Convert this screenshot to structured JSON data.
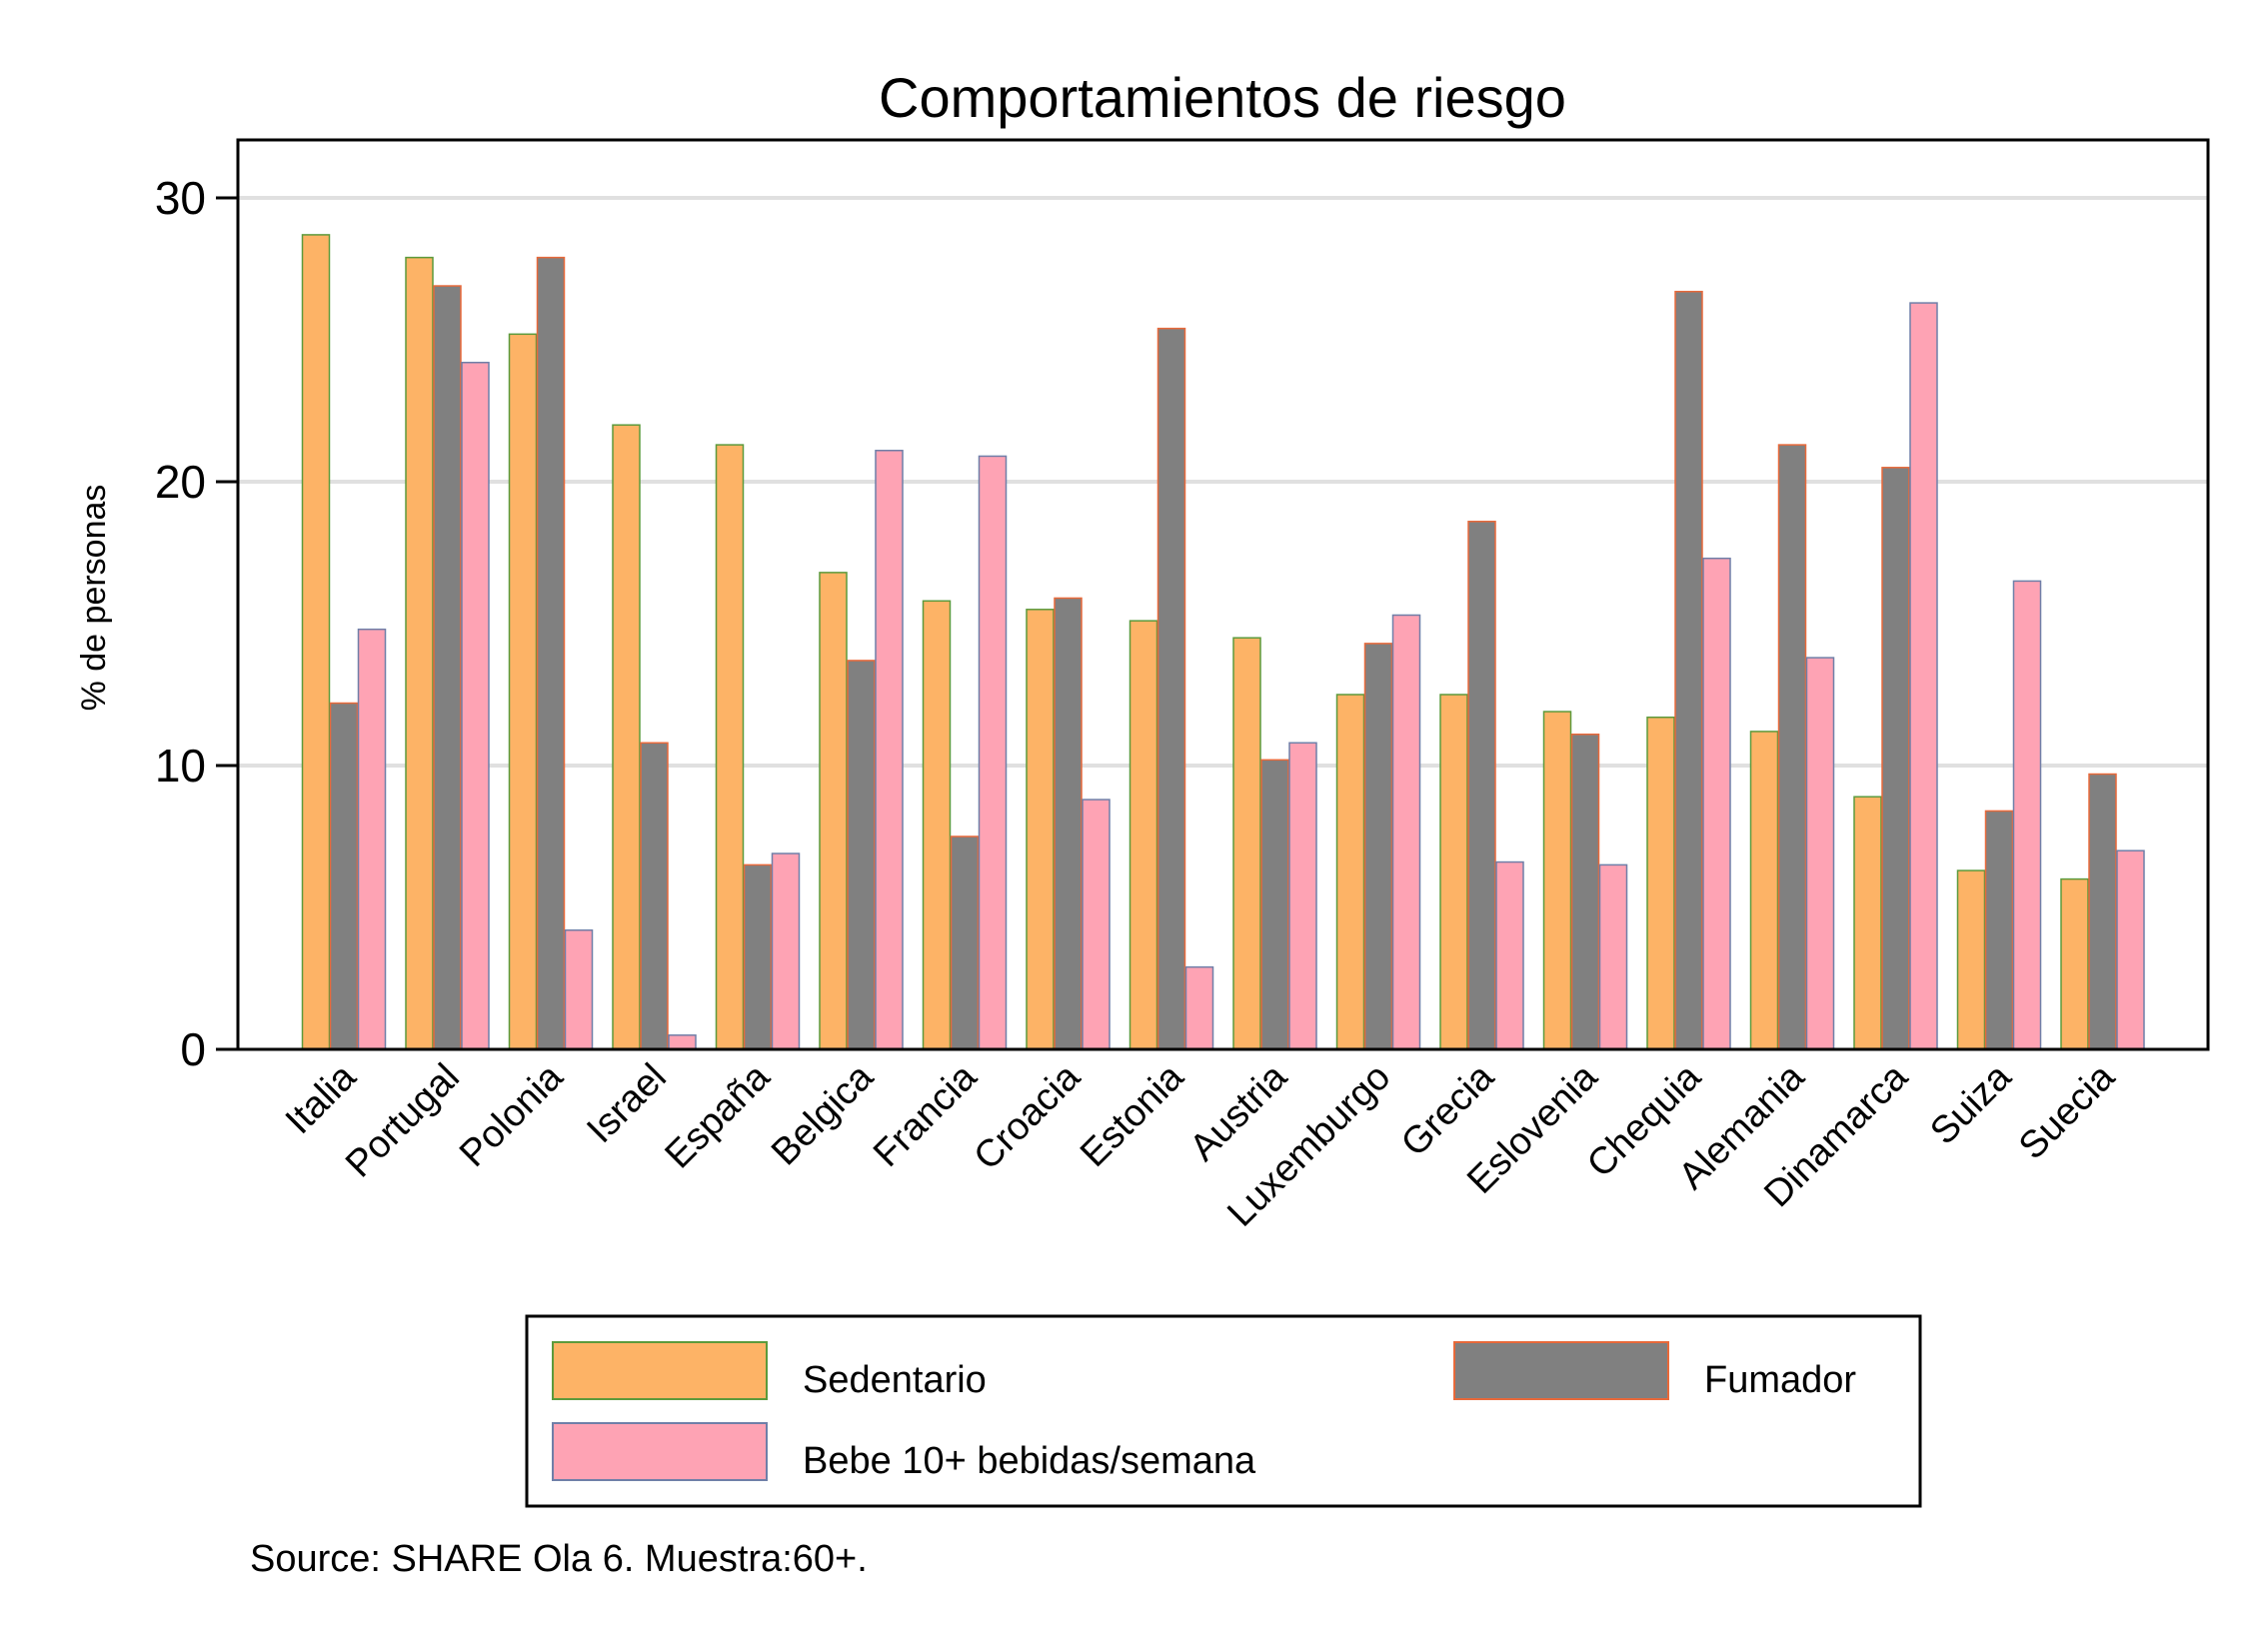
{
  "chart_data": {
    "type": "bar",
    "title": "Comportamientos de riesgo",
    "xlabel": "",
    "ylabel": "% de personas",
    "ylim": [
      0,
      32.5
    ],
    "yticks": [
      0,
      10,
      20,
      30
    ],
    "grid": true,
    "legend_position": "bottom",
    "categories": [
      "Italia",
      "Portugal",
      "Polonia",
      "Israel",
      "España",
      "Belgica",
      "Francia",
      "Croacia",
      "Estonia",
      "Austria",
      "Luxemburgo",
      "Grecia",
      "Eslovenia",
      "Chequia",
      "Alemania",
      "Dinamarca",
      "Suiza",
      "Suecia"
    ],
    "series": [
      {
        "name": "Sedentario",
        "color": "#fdb366",
        "edge": "#5c9a3c",
        "values": [
          28.7,
          27.9,
          25.2,
          22.0,
          21.3,
          16.8,
          15.8,
          15.5,
          15.1,
          14.5,
          12.5,
          12.5,
          11.9,
          11.7,
          11.2,
          8.9,
          6.3,
          6.0
        ]
      },
      {
        "name": "Fumador",
        "color": "#808080",
        "edge": "#e8693a",
        "values": [
          12.2,
          26.9,
          27.9,
          10.8,
          6.5,
          13.7,
          7.5,
          15.9,
          25.4,
          10.2,
          14.3,
          18.6,
          11.1,
          26.7,
          21.3,
          20.5,
          8.4,
          9.7
        ]
      },
      {
        "name": "Bebe 10+ bebidas/semana",
        "color": "#fea3b4",
        "edge": "#6f7fa8",
        "values": [
          14.8,
          24.2,
          4.2,
          0.5,
          6.9,
          21.1,
          20.9,
          8.8,
          2.9,
          10.8,
          15.3,
          6.6,
          6.5,
          17.3,
          13.8,
          26.3,
          16.5,
          7.0
        ]
      }
    ],
    "note": "Source: SHARE Ola 6. Muestra:60+."
  }
}
